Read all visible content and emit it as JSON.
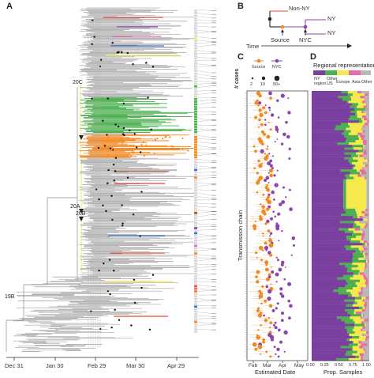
{
  "panels": {
    "a": "A",
    "b": "B",
    "c": "C",
    "d": "D"
  },
  "panel_a": {
    "x_ticks": [
      "Dec 31",
      "Jan 30",
      "Feb 29",
      "Mar 30",
      "Apr 29"
    ],
    "clades": [
      "20C",
      "20A",
      "20B",
      "19B"
    ]
  },
  "panel_b": {
    "labels": {
      "non_ny": "Non-NY",
      "ny1": "NY",
      "ny2": "NY",
      "source": "Source",
      "nyc": "NYC",
      "time": "Time"
    },
    "colors": {
      "non_ny": "#e8453c",
      "nyc": "#7b3fa0",
      "stem": "#222222"
    }
  },
  "panel_c": {
    "legend": {
      "source": "Source",
      "nyc": "NYC",
      "cases_title": "# cases",
      "sizes": [
        "2",
        "10",
        "50+"
      ]
    },
    "x_ticks": [
      "Feb",
      "Mar",
      "Apr",
      "May"
    ],
    "xlabel": "Estimated Date",
    "ylabel": "Transmission chain",
    "colors": {
      "source": "#f08a24",
      "nyc": "#8e44ad"
    }
  },
  "panel_d": {
    "title": "Regional representation",
    "legend": [
      "NY region",
      "Other US",
      "Europe",
      "Asia",
      "Other"
    ],
    "legend_colors": [
      "#7b3fa0",
      "#4caf50",
      "#f5e94b",
      "#e86aa6",
      "#b8b8b8"
    ],
    "x_ticks": [
      "0.00",
      "0.25",
      "0.50",
      "0.75",
      "1.00"
    ],
    "xlabel": "Prop. Samples"
  },
  "tree_colors": [
    "#e8453c",
    "#4caf50",
    "#f08a24",
    "#3b6fd1",
    "#8e44ad",
    "#f5e94b",
    "#e86aa6",
    "#a0522d"
  ]
}
